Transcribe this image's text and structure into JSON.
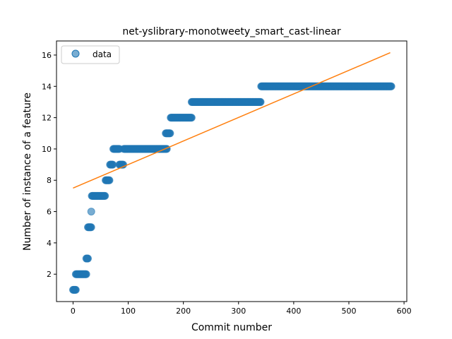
{
  "chart_data": {
    "type": "scatter",
    "title": "net-yslibrary-monotweety_smart_cast-linear",
    "xlabel": "Commit number",
    "ylabel": "Number of instance of a feature",
    "xlim": [
      -30,
      605
    ],
    "ylim": [
      0.25,
      16.9
    ],
    "x_ticks": [
      0,
      100,
      200,
      300,
      400,
      500,
      600
    ],
    "y_ticks": [
      2,
      4,
      6,
      8,
      10,
      12,
      14,
      16
    ],
    "grid": false,
    "legend": {
      "position": "top-left",
      "entries": [
        "data"
      ]
    },
    "series": [
      {
        "name": "data",
        "kind": "scatter",
        "color": "#1f77b4",
        "segments": [
          {
            "x_from": 0,
            "x_to": 5,
            "y": 1
          },
          {
            "x_from": 5,
            "x_to": 24,
            "y": 2
          },
          {
            "x_from": 24,
            "x_to": 27,
            "y": 3
          },
          {
            "x_from": 27,
            "x_to": 33,
            "y": 5
          },
          {
            "x_from": 33,
            "x_to": 33,
            "y": 6
          },
          {
            "x_from": 34,
            "x_to": 58,
            "y": 7
          },
          {
            "x_from": 59,
            "x_to": 66,
            "y": 8
          },
          {
            "x_from": 67,
            "x_to": 72,
            "y": 9
          },
          {
            "x_from": 73,
            "x_to": 84,
            "y": 10
          },
          {
            "x_from": 84,
            "x_to": 91,
            "y": 9
          },
          {
            "x_from": 92,
            "x_to": 170,
            "y": 10
          },
          {
            "x_from": 168,
            "x_to": 176,
            "y": 11
          },
          {
            "x_from": 177,
            "x_to": 215,
            "y": 12
          },
          {
            "x_from": 215,
            "x_to": 340,
            "y": 13
          },
          {
            "x_from": 341,
            "x_to": 577,
            "y": 14
          }
        ]
      },
      {
        "name": "",
        "kind": "line",
        "color": "#ff7f0e",
        "x": [
          0,
          575
        ],
        "y": [
          7.5,
          16.15
        ]
      }
    ]
  }
}
